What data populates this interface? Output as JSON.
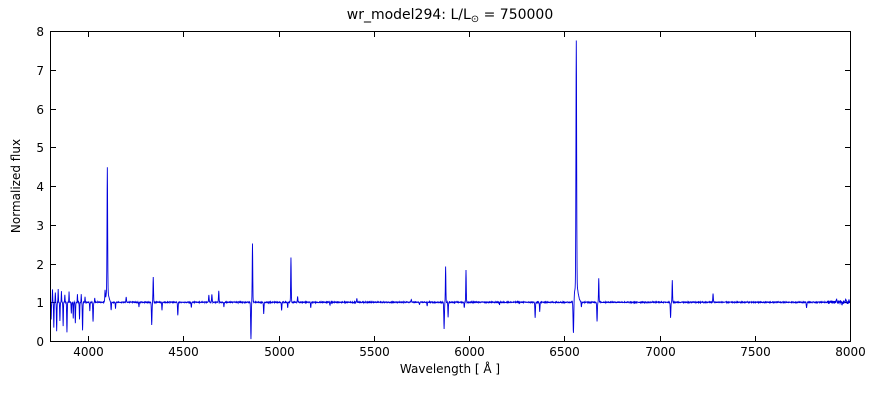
{
  "figure": {
    "title_prefix": "wr_model294: L/L",
    "title_sub": "⊙",
    "title_suffix": " = 750000"
  },
  "chart_data": {
    "type": "line",
    "title": "wr_model294: L/L⊙ = 750000",
    "xlabel": "Wavelength [ Å ]",
    "ylabel": "Normalized flux",
    "xlim": [
      3800,
      8000
    ],
    "ylim": [
      0,
      8
    ],
    "xticks": [
      4000,
      4500,
      5000,
      5500,
      6000,
      6500,
      7000,
      7500,
      8000
    ],
    "yticks": [
      0,
      1,
      2,
      3,
      4,
      5,
      6,
      7,
      8
    ],
    "line_color": "#0000dd",
    "background": "#ffffff",
    "legend": "none",
    "grid": false,
    "continuum": 1.0,
    "sample_step": 1,
    "noise_amplitude": 0.012,
    "edge_noise": {
      "start": 7880,
      "amplitude": 0.045
    },
    "features_format": [
      "wavelength_angstrom",
      "peak_flux",
      "gaussian_sigma_angstrom"
    ],
    "features": [
      [
        3806,
        0.55,
        1.2
      ],
      [
        3813,
        1.32,
        1.0
      ],
      [
        3820,
        0.34,
        1.2
      ],
      [
        3828,
        1.25,
        1.0
      ],
      [
        3835,
        0.25,
        1.3
      ],
      [
        3843,
        1.34,
        1.0
      ],
      [
        3852,
        0.52,
        1.2
      ],
      [
        3860,
        1.28,
        1.0
      ],
      [
        3869,
        0.38,
        1.2
      ],
      [
        3878,
        1.2,
        1.0
      ],
      [
        3889,
        0.22,
        1.4
      ],
      [
        3900,
        1.27,
        1.0
      ],
      [
        3912,
        0.72,
        1.2
      ],
      [
        3922,
        0.58,
        1.2
      ],
      [
        3933,
        0.45,
        1.3
      ],
      [
        3944,
        1.22,
        1.0
      ],
      [
        3955,
        0.55,
        1.2
      ],
      [
        3964,
        1.2,
        1.0
      ],
      [
        3971,
        0.27,
        1.4
      ],
      [
        3984,
        1.15,
        1.0
      ],
      [
        4009,
        0.78,
        1.2
      ],
      [
        4026,
        0.5,
        1.5
      ],
      [
        4035,
        1.12,
        1.0
      ],
      [
        4089,
        1.25,
        1.2
      ],
      [
        4101,
        4.2,
        1.6
      ],
      [
        4101,
        1.28,
        7.0
      ],
      [
        4121,
        0.78,
        1.3
      ],
      [
        4144,
        0.84,
        1.3
      ],
      [
        4200,
        1.14,
        1.5
      ],
      [
        4267,
        0.88,
        1.2
      ],
      [
        4334,
        0.42,
        1.6
      ],
      [
        4342,
        1.65,
        1.4
      ],
      [
        4388,
        0.8,
        1.3
      ],
      [
        4471,
        0.66,
        1.5
      ],
      [
        4542,
        0.86,
        1.3
      ],
      [
        4634,
        1.18,
        1.5
      ],
      [
        4650,
        1.2,
        1.5
      ],
      [
        4686,
        1.3,
        1.4
      ],
      [
        4713,
        0.88,
        1.2
      ],
      [
        4855,
        0.05,
        1.6
      ],
      [
        4863,
        2.52,
        1.4
      ],
      [
        4922,
        0.7,
        1.4
      ],
      [
        5016,
        0.78,
        1.4
      ],
      [
        5048,
        0.85,
        1.2
      ],
      [
        5065,
        2.15,
        1.4
      ],
      [
        5100,
        1.15,
        1.3
      ],
      [
        5169,
        0.85,
        1.3
      ],
      [
        5270,
        0.92,
        1.3
      ],
      [
        5411,
        1.1,
        1.4
      ],
      [
        5697,
        1.08,
        1.6
      ],
      [
        5740,
        0.93,
        1.3
      ],
      [
        5780,
        0.9,
        1.3
      ],
      [
        5869,
        0.32,
        1.6
      ],
      [
        5877,
        1.92,
        1.3
      ],
      [
        5890,
        0.6,
        1.2
      ],
      [
        5975,
        0.85,
        1.2
      ],
      [
        5984,
        1.84,
        1.3
      ],
      [
        6160,
        0.94,
        1.2
      ],
      [
        6347,
        0.6,
        1.5
      ],
      [
        6371,
        0.76,
        1.3
      ],
      [
        6548,
        0.1,
        2.0
      ],
      [
        6563,
        7.3,
        1.8
      ],
      [
        6563,
        1.45,
        9.0
      ],
      [
        6590,
        0.88,
        1.4
      ],
      [
        6672,
        0.5,
        1.5
      ],
      [
        6681,
        1.62,
        1.3
      ],
      [
        7058,
        0.6,
        1.5
      ],
      [
        7067,
        1.56,
        1.3
      ],
      [
        7281,
        1.22,
        1.4
      ],
      [
        7772,
        0.86,
        1.6
      ],
      [
        7930,
        1.1,
        1.2
      ],
      [
        7958,
        0.9,
        1.0
      ],
      [
        7978,
        1.1,
        1.0
      ],
      [
        7994,
        1.06,
        1.0
      ]
    ]
  }
}
